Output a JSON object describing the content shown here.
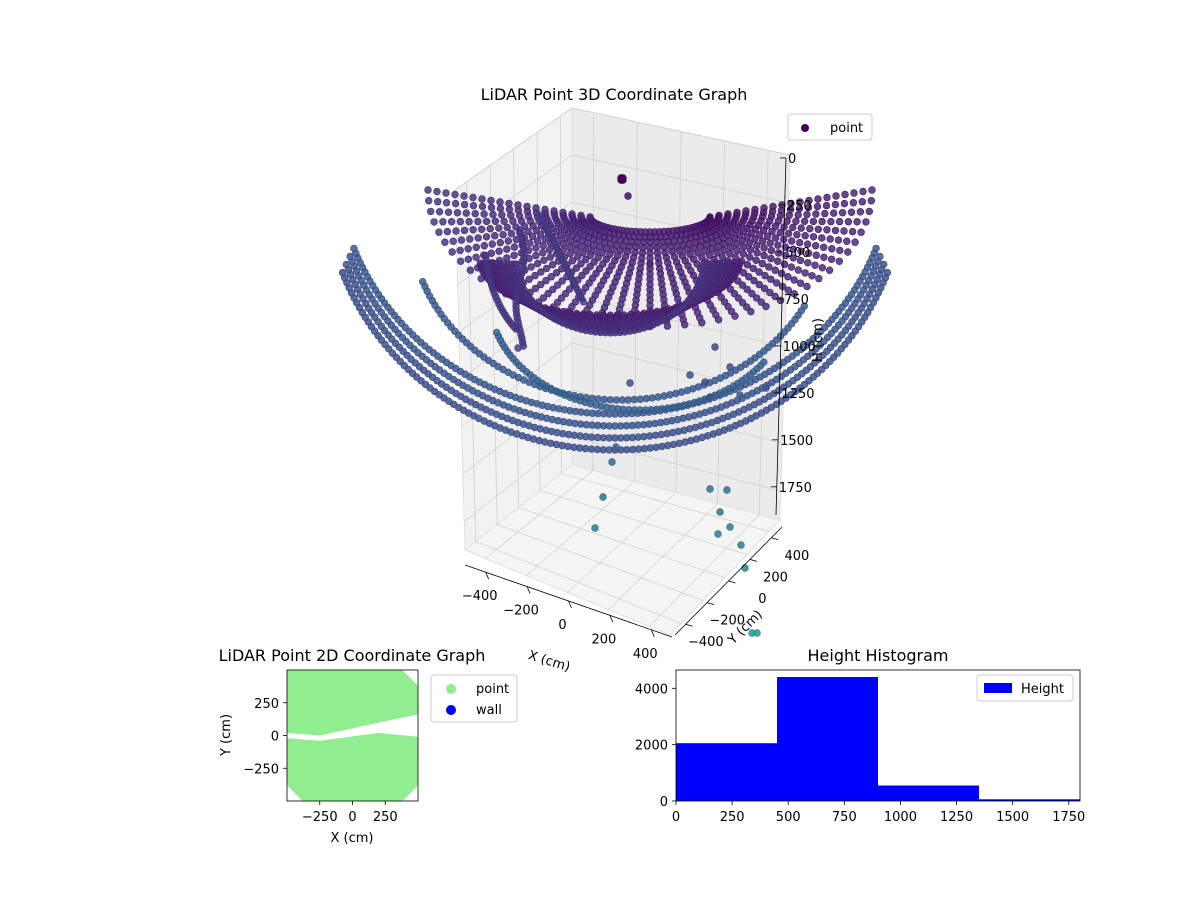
{
  "chart_data": [
    {
      "type": "scatter3d",
      "title": "LiDAR Point 3D Coordinate Graph",
      "xlabel": "X (cm)",
      "ylabel": "Y (cm)",
      "zlabel": "H (cm)",
      "xlim": [
        -500,
        500
      ],
      "ylim": [
        -500,
        500
      ],
      "zlim": [
        1900,
        0
      ],
      "x_ticks": [
        -400,
        -200,
        0,
        200,
        400
      ],
      "y_ticks": [
        -400,
        -200,
        0,
        200,
        400
      ],
      "z_ticks": [
        0,
        250,
        500,
        750,
        1000,
        1250,
        1500,
        1750
      ],
      "legend": [
        "point"
      ],
      "legend_location": "top-right",
      "colormap": "viridis"
    },
    {
      "type": "scatter",
      "title": "LiDAR Point 2D Coordinate Graph",
      "xlabel": "X (cm)",
      "ylabel": "Y (cm)",
      "xlim": [
        -500,
        500
      ],
      "ylim": [
        -500,
        500
      ],
      "x_ticks": [
        -250,
        0,
        250
      ],
      "y_ticks": [
        -250,
        0,
        250
      ],
      "series": [
        {
          "name": "point",
          "color": "#90ee90"
        },
        {
          "name": "wall",
          "color": "#0000ff"
        }
      ],
      "legend_location": "outside-right"
    },
    {
      "type": "bar",
      "title": "Height Histogram",
      "bin_edges": [
        0,
        450,
        900,
        1350,
        1800
      ],
      "values": [
        2050,
        4400,
        550,
        60
      ],
      "xlim": [
        0,
        1800
      ],
      "ylim": [
        0,
        4650
      ],
      "x_ticks": [
        0,
        250,
        500,
        750,
        1000,
        1250,
        1500,
        1750
      ],
      "y_ticks": [
        0,
        2000,
        4000
      ],
      "series_name": "Height",
      "color": "#0000ff",
      "legend_location": "top-right"
    }
  ]
}
